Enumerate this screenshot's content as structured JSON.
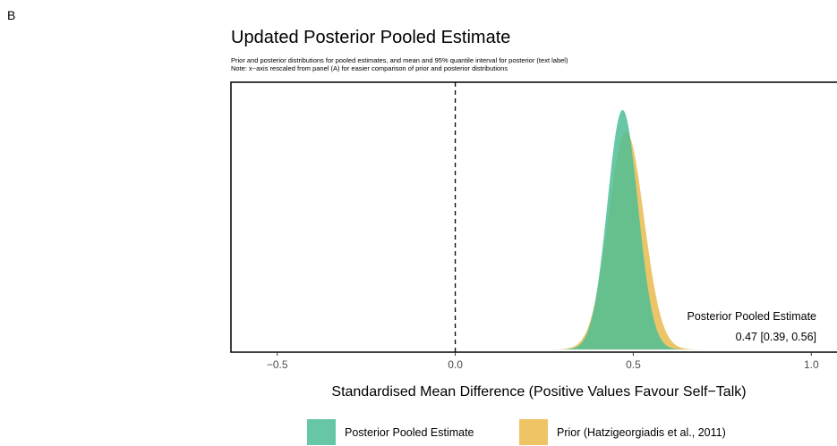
{
  "panel_label": "B",
  "chart_data": {
    "type": "area",
    "title": "Updated Posterior Pooled Estimate",
    "subtitle_lines": [
      "Prior and posterior distributions for pooled estimates, and mean and 95% quantile interval for posterior (text label)",
      "Note: x−axis rescaled from panel (A) for easier comparison of prior and posterior distributions"
    ],
    "xlabel": "Standardised Mean Difference (Positive Values Favour Self−Talk)",
    "ylabel": "",
    "xlim": [
      -0.63,
      1.13
    ],
    "x_ticks": [
      -0.5,
      0.0,
      0.5,
      1.0
    ],
    "x_tick_labels": [
      "−0.5",
      "0.0",
      "0.5",
      "1.0"
    ],
    "grid": false,
    "reference_line_x": 0.0,
    "series": [
      {
        "name": "Prior (Hatzigeorgiadis et al., 2011)",
        "color": "#E9BB4F",
        "distribution": "normal",
        "mean": 0.48,
        "sd": 0.05,
        "relative_peak_height": 0.91
      },
      {
        "name": "Posterior Pooled Estimate",
        "color": "#4DBE95",
        "distribution": "normal",
        "mean": 0.47,
        "sd": 0.043,
        "relative_peak_height": 1.0
      }
    ],
    "annotation": {
      "label": "Posterior Pooled Estimate",
      "value": "0.47 [0.39, 0.56]",
      "mean": 0.47,
      "lower": 0.39,
      "upper": 0.56
    },
    "legend": {
      "position": "bottom",
      "entries": [
        {
          "label": "Posterior Pooled Estimate",
          "color": "#66C6A6"
        },
        {
          "label": "Prior (Hatzigeorgiadis et al., 2011)",
          "color": "#EFC465"
        }
      ]
    }
  }
}
